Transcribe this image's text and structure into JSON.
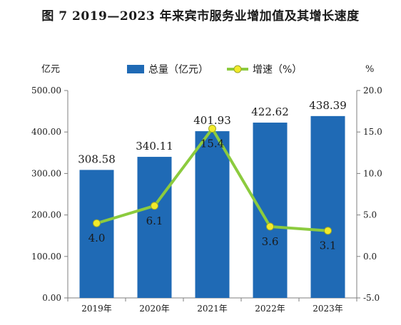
{
  "figure": {
    "title": "图 7    2019—2023 年来宾市服务业增加值及其增长速度"
  },
  "chart_data": {
    "type": "bar+line",
    "categories": [
      "2019年",
      "2020年",
      "2021年",
      "2022年",
      "2023年"
    ],
    "series": [
      {
        "name": "总量（亿元）",
        "type": "bar",
        "axis": "left",
        "values": [
          308.58,
          340.11,
          401.93,
          422.62,
          438.39
        ],
        "labels": [
          "308.58",
          "340.11",
          "401.93",
          "422.62",
          "438.39"
        ],
        "color": "#1f6ab5"
      },
      {
        "name": "增速（%）",
        "type": "line",
        "axis": "right",
        "values": [
          4.0,
          6.1,
          15.4,
          3.6,
          3.1
        ],
        "labels": [
          "4.0",
          "6.1",
          "15.4",
          "3.6",
          "3.1"
        ],
        "color": "#8ccb3e",
        "marker_color": "#f2ea2a"
      }
    ],
    "y_left": {
      "unit": "亿元",
      "range": [
        0,
        500
      ],
      "ticks": [
        0,
        100,
        200,
        300,
        400,
        500
      ],
      "tick_labels": [
        "0.00",
        "100.00",
        "200.00",
        "300.00",
        "400.00",
        "500.00"
      ]
    },
    "y_right": {
      "unit": "%",
      "range": [
        -5,
        20
      ],
      "ticks": [
        -5,
        0,
        5,
        10,
        15,
        20
      ],
      "tick_labels": [
        "-5.0",
        "0.0",
        "5.0",
        "10.0",
        "15.0",
        "20.0"
      ]
    },
    "legend_position": "top",
    "grid": false
  }
}
